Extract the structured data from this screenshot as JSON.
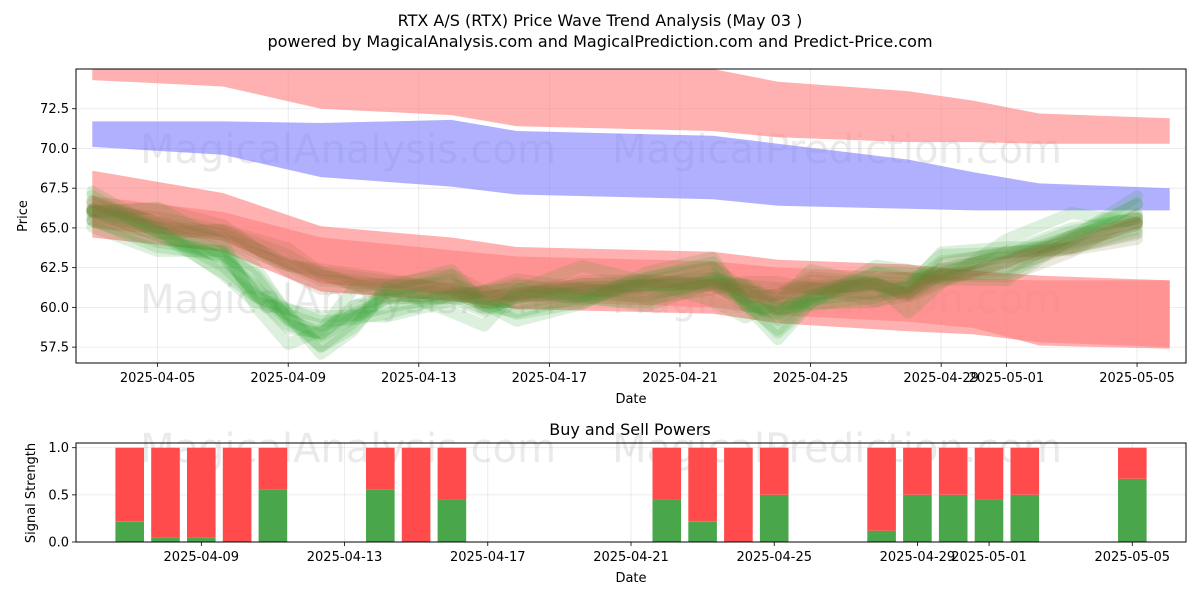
{
  "chart_data": [
    {
      "type": "area",
      "title": "RTX A/S (RTX) Price Wave Trend Analysis (May 03 )",
      "subtitle": "powered by MagicalAnalysis.com and MagicalPrediction.com and Predict-Price.com",
      "xlabel": "Date",
      "ylabel": "Price",
      "xlim": [
        "2025-04-02T12:00",
        "2025-05-06T12:00"
      ],
      "ylim": [
        56.5,
        75.0
      ],
      "xticks": [
        "2025-04-05",
        "2025-04-09",
        "2025-04-13",
        "2025-04-17",
        "2025-04-21",
        "2025-04-25",
        "2025-04-29",
        "2025-05-01",
        "2025-05-05"
      ],
      "yticks": [
        "57.5",
        "60.0",
        "62.5",
        "65.0",
        "67.5",
        "70.0",
        "72.5"
      ],
      "grid": true,
      "watermarks": [
        "MagicalAnalysis.com",
        "MagicalPrediction.com",
        "MagicalAnalysis.com",
        "MagicalPrediction.com"
      ],
      "bands": [
        {
          "name": "upper-red",
          "color": "#ff7f7f",
          "dates": [
            "2025-04-03",
            "2025-04-07",
            "2025-04-10",
            "2025-04-14",
            "2025-04-16",
            "2025-04-22",
            "2025-04-24",
            "2025-04-28",
            "2025-04-30",
            "2025-05-02",
            "2025-05-06"
          ],
          "upper": [
            75.0,
            75.0,
            75.0,
            75.0,
            75.0,
            75.0,
            74.2,
            73.6,
            73.0,
            72.2,
            71.9
          ],
          "lower": [
            74.3,
            73.9,
            72.5,
            72.1,
            71.4,
            71.1,
            70.7,
            70.4,
            70.4,
            70.3,
            70.3
          ]
        },
        {
          "name": "upper-blue",
          "color": "#7f7fff",
          "dates": [
            "2025-04-03",
            "2025-04-07",
            "2025-04-10",
            "2025-04-14",
            "2025-04-16",
            "2025-04-22",
            "2025-04-24",
            "2025-04-28",
            "2025-04-30",
            "2025-05-02",
            "2025-05-06"
          ],
          "upper": [
            71.7,
            71.7,
            71.6,
            71.8,
            71.1,
            70.8,
            70.3,
            69.3,
            68.5,
            67.8,
            67.5
          ],
          "lower": [
            70.1,
            69.6,
            68.2,
            67.6,
            67.1,
            66.8,
            66.4,
            66.2,
            66.1,
            66.1,
            66.1
          ]
        },
        {
          "name": "lower-red-1",
          "color": "#ff7f7f",
          "dates": [
            "2025-04-03",
            "2025-04-07",
            "2025-04-10",
            "2025-04-14",
            "2025-04-16",
            "2025-04-22",
            "2025-04-24",
            "2025-04-28",
            "2025-04-30",
            "2025-05-02",
            "2025-05-06"
          ],
          "upper": [
            68.6,
            67.2,
            65.1,
            64.4,
            63.8,
            63.5,
            63.0,
            62.7,
            62.3,
            62.0,
            61.7
          ],
          "lower": [
            64.4,
            63.5,
            61.0,
            60.4,
            59.9,
            59.6,
            59.0,
            58.5,
            58.3,
            57.8,
            57.5
          ]
        },
        {
          "name": "lower-red-2",
          "color": "#ff7f7f",
          "dates": [
            "2025-04-03",
            "2025-04-07",
            "2025-04-10",
            "2025-04-14",
            "2025-04-16",
            "2025-04-22",
            "2025-04-24",
            "2025-04-28",
            "2025-04-30",
            "2025-05-02",
            "2025-05-06"
          ],
          "upper": [
            67.0,
            66.0,
            64.4,
            63.6,
            63.2,
            62.9,
            62.5,
            62.2,
            61.8,
            61.7,
            61.7
          ],
          "lower": [
            65.0,
            64.2,
            61.5,
            60.9,
            60.4,
            60.0,
            59.5,
            59.1,
            58.7,
            57.6,
            57.4
          ]
        }
      ],
      "wave_series": [
        {
          "name": "green-wave",
          "color": "#2ca02c",
          "dates": [
            "2025-04-03",
            "2025-04-05",
            "2025-04-07",
            "2025-04-08",
            "2025-04-09",
            "2025-04-10",
            "2025-04-11",
            "2025-04-12",
            "2025-04-14",
            "2025-04-15",
            "2025-04-16",
            "2025-04-18",
            "2025-04-20",
            "2025-04-22",
            "2025-04-23",
            "2025-04-24",
            "2025-04-25",
            "2025-04-27",
            "2025-04-28",
            "2025-04-29",
            "2025-05-01",
            "2025-05-03",
            "2025-05-05"
          ],
          "values": [
            66.2,
            64.8,
            63.1,
            61.0,
            59.2,
            58.4,
            59.6,
            60.5,
            60.9,
            60.2,
            60.6,
            61.0,
            61.2,
            61.8,
            60.5,
            59.5,
            60.8,
            61.4,
            61.2,
            62.4,
            63.2,
            64.5,
            65.6
          ],
          "offsets": [
            0.0,
            -0.9,
            0.9,
            -1.6,
            1.5,
            -0.5,
            0.5,
            -1.1,
            1.1,
            -0.3,
            0.3
          ]
        },
        {
          "name": "brown-wave",
          "color": "#8b6d3a",
          "dates": [
            "2025-04-03",
            "2025-04-05",
            "2025-04-07",
            "2025-04-09",
            "2025-04-10",
            "2025-04-12",
            "2025-04-14",
            "2025-04-15",
            "2025-04-16",
            "2025-04-18",
            "2025-04-20",
            "2025-04-22",
            "2025-04-23",
            "2025-04-24",
            "2025-04-25",
            "2025-04-27",
            "2025-04-28",
            "2025-04-29",
            "2025-05-01",
            "2025-05-03",
            "2025-05-05"
          ],
          "values": [
            66.2,
            65.4,
            64.6,
            62.8,
            62.0,
            61.4,
            61.2,
            60.6,
            60.9,
            61.2,
            61.4,
            61.6,
            61.0,
            60.8,
            61.4,
            61.3,
            61.0,
            62.0,
            62.8,
            64.0,
            65.2
          ],
          "offsets": [
            0.0,
            -0.5,
            0.5,
            -0.9,
            0.9,
            -0.3,
            0.3
          ]
        }
      ]
    },
    {
      "type": "bar",
      "title": "Buy and Sell Powers",
      "xlabel": "Date",
      "ylabel": "Signal Strength",
      "xlim": [
        "2025-04-05T12:00",
        "2025-05-06T12:00"
      ],
      "ylim": [
        0.0,
        1.05
      ],
      "xticks": [
        "2025-04-09",
        "2025-04-13",
        "2025-04-17",
        "2025-04-21",
        "2025-04-25",
        "2025-04-29",
        "2025-05-01",
        "2025-05-05"
      ],
      "yticks": [
        "0.0",
        "0.5",
        "1.0"
      ],
      "grid": true,
      "watermarks": [
        "MagicalAnalysis.com",
        "MagicalPrediction.com"
      ],
      "colors": {
        "buy": "#4aa64a",
        "sell": "#ff4b4b"
      },
      "dates": [
        "2025-04-07",
        "2025-04-08",
        "2025-04-09",
        "2025-04-10",
        "2025-04-11",
        "2025-04-14",
        "2025-04-15",
        "2025-04-16",
        "2025-04-22",
        "2025-04-23",
        "2025-04-24",
        "2025-04-25",
        "2025-04-28",
        "2025-04-29",
        "2025-04-30",
        "2025-05-01",
        "2025-05-02",
        "2025-05-05"
      ],
      "buy": [
        0.22,
        0.05,
        0.05,
        0.0,
        0.56,
        0.56,
        0.0,
        0.45,
        0.45,
        0.22,
        0.0,
        0.5,
        0.12,
        0.5,
        0.5,
        0.45,
        0.5,
        0.67
      ],
      "total": 1.0
    }
  ]
}
